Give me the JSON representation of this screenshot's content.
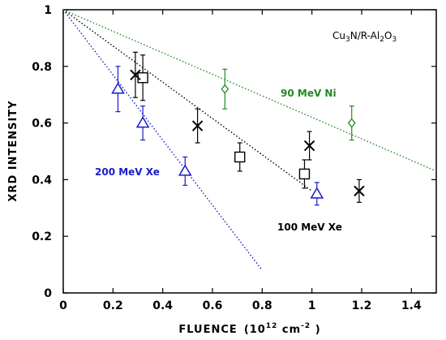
{
  "chart_data": {
    "type": "scatter",
    "title": "",
    "xlabel": "FLUENCE",
    "xlabel_unit_prefix": "(10",
    "xlabel_unit_exp": "12",
    "xlabel_unit_mid": " cm",
    "xlabel_unit_exp2": "-2",
    "xlabel_unit_suffix": " )",
    "ylabel": "XRD  INTENSITY",
    "xlim": [
      0,
      1.5
    ],
    "ylim": [
      0,
      1
    ],
    "xticks": [
      "0",
      "0.2",
      "0.4",
      "0.6",
      "0.8",
      "1",
      "1.2",
      "1.4"
    ],
    "xtick_values": [
      0,
      0.2,
      0.4,
      0.6,
      0.8,
      1.0,
      1.2,
      1.4
    ],
    "yticks": [
      "0",
      "0.2",
      "0.4",
      "0.6",
      "0.8",
      "1"
    ],
    "ytick_values": [
      0,
      0.2,
      0.4,
      0.6,
      0.8,
      1.0
    ],
    "grid": false,
    "sample_label_parts": [
      "Cu",
      "3",
      "N/R-Al",
      "2",
      "O",
      "3"
    ],
    "series": [
      {
        "label": "200 MeV Xe",
        "color": "#1a1acc",
        "marker": "triangle",
        "points": [
          {
            "x": 0.22,
            "y": 0.72,
            "err": 0.08
          },
          {
            "x": 0.32,
            "y": 0.6,
            "err": 0.06
          },
          {
            "x": 0.49,
            "y": 0.43,
            "err": 0.05
          },
          {
            "x": 1.02,
            "y": 0.35,
            "err": 0.04
          }
        ],
        "fit": {
          "x": [
            0,
            0.8
          ],
          "y": [
            1.0,
            0.08
          ]
        }
      },
      {
        "label": "100 MeV Xe",
        "color": "#000000",
        "marker": "square",
        "points": [
          {
            "x": 0.32,
            "y": 0.76,
            "err": 0.08
          },
          {
            "x": 0.71,
            "y": 0.48,
            "err": 0.05
          },
          {
            "x": 0.97,
            "y": 0.42,
            "err": 0.05
          }
        ],
        "fit": {
          "x": [
            0,
            1.0
          ],
          "y": [
            1.0,
            0.36
          ]
        }
      },
      {
        "label": "",
        "color": "#000000",
        "marker": "x",
        "points": [
          {
            "x": 0.29,
            "y": 0.77,
            "err": 0.08
          },
          {
            "x": 0.54,
            "y": 0.59,
            "err": 0.06
          },
          {
            "x": 0.99,
            "y": 0.52,
            "err": 0.05
          },
          {
            "x": 1.19,
            "y": 0.36,
            "err": 0.04
          }
        ]
      },
      {
        "label": "90 MeV Ni",
        "color": "#228822",
        "marker": "diamond",
        "points": [
          {
            "x": 0.65,
            "y": 0.72,
            "err": 0.07
          },
          {
            "x": 1.16,
            "y": 0.6,
            "err": 0.06
          }
        ],
        "fit": {
          "x": [
            0,
            1.5
          ],
          "y": [
            1.0,
            0.43
          ]
        }
      }
    ]
  }
}
